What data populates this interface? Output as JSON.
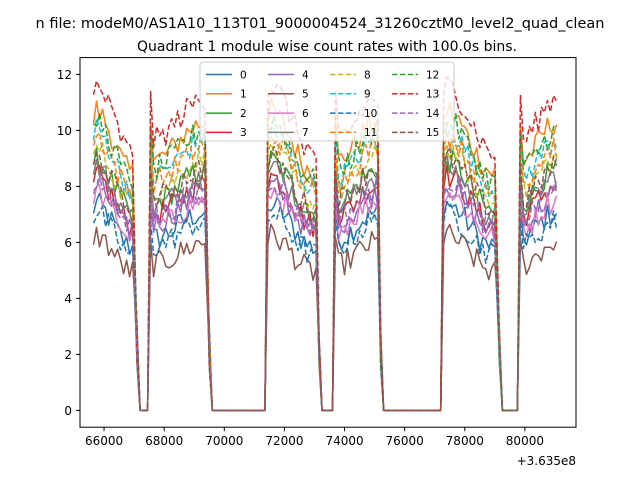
{
  "suptitle": "n file: modeM0/AS1A10_113T01_9000004524_31260cztM0_level2_quad_clean",
  "chart_data": {
    "type": "line",
    "title": "Quadrant 1 module wise count rates with 100.0s bins.",
    "xlabel": "",
    "ylabel": "",
    "x_offset_label": "+3.635e8",
    "xlim": [
      65200,
      81700
    ],
    "ylim": [
      -0.6,
      12.6
    ],
    "x_ticks": [
      66000,
      68000,
      70000,
      72000,
      74000,
      76000,
      78000,
      80000
    ],
    "x_tick_labels": [
      "66000",
      "68000",
      "70000",
      "72000",
      "74000",
      "76000",
      "78000",
      "80000"
    ],
    "y_ticks": [
      0,
      2,
      4,
      6,
      8,
      10,
      12
    ],
    "y_tick_labels": [
      "0",
      "2",
      "4",
      "6",
      "8",
      "10",
      "12"
    ],
    "legend_position": "upper-center",
    "legend_columns": 4,
    "bin_width_s": 100,
    "gaps": [
      {
        "start": 67050,
        "end": 67500
      },
      {
        "start": 69450,
        "end": 71400
      },
      {
        "start": 73100,
        "end": 73650
      },
      {
        "start": 75150,
        "end": 77250
      },
      {
        "start": 79100,
        "end": 79800
      }
    ],
    "segments": [
      {
        "start": 65650,
        "end": 67000
      },
      {
        "start": 67550,
        "end": 69400
      },
      {
        "start": 71450,
        "end": 73050
      },
      {
        "start": 73700,
        "end": 75100
      },
      {
        "start": 77300,
        "end": 79050
      },
      {
        "start": 79850,
        "end": 81050
      }
    ],
    "series": [
      {
        "name": "0",
        "color": "#1f77b4",
        "style": "solid",
        "level": 6.6
      },
      {
        "name": "1",
        "color": "#ff7f0e",
        "style": "solid",
        "level": 9.6
      },
      {
        "name": "2",
        "color": "#2ca02c",
        "style": "solid",
        "level": 8.0
      },
      {
        "name": "3",
        "color": "#d62728",
        "style": "solid",
        "level": 7.5
      },
      {
        "name": "4",
        "color": "#9467bd",
        "style": "solid",
        "level": 7.2
      },
      {
        "name": "5",
        "color": "#8c564b",
        "style": "solid",
        "level": 5.6
      },
      {
        "name": "6",
        "color": "#e377c2",
        "style": "solid",
        "level": 7.0
      },
      {
        "name": "7",
        "color": "#7f7f7f",
        "style": "solid",
        "level": 7.8
      },
      {
        "name": "8",
        "color": "#bcbd22",
        "style": "dashed",
        "level": 8.4
      },
      {
        "name": "9",
        "color": "#17becf",
        "style": "dashed",
        "level": 9.0
      },
      {
        "name": "10",
        "color": "#1f77b4",
        "style": "dashed",
        "level": 6.3
      },
      {
        "name": "11",
        "color": "#ff7f0e",
        "style": "dashed",
        "level": 8.8
      },
      {
        "name": "12",
        "color": "#2ca02c",
        "style": "dashed",
        "level": 9.3
      },
      {
        "name": "13",
        "color": "#d62728",
        "style": "dashed",
        "level": 10.4
      },
      {
        "name": "14",
        "color": "#9467bd",
        "style": "dashed",
        "level": 7.4
      },
      {
        "name": "15",
        "color": "#8c564b",
        "style": "dashed",
        "level": 8.1
      }
    ]
  }
}
